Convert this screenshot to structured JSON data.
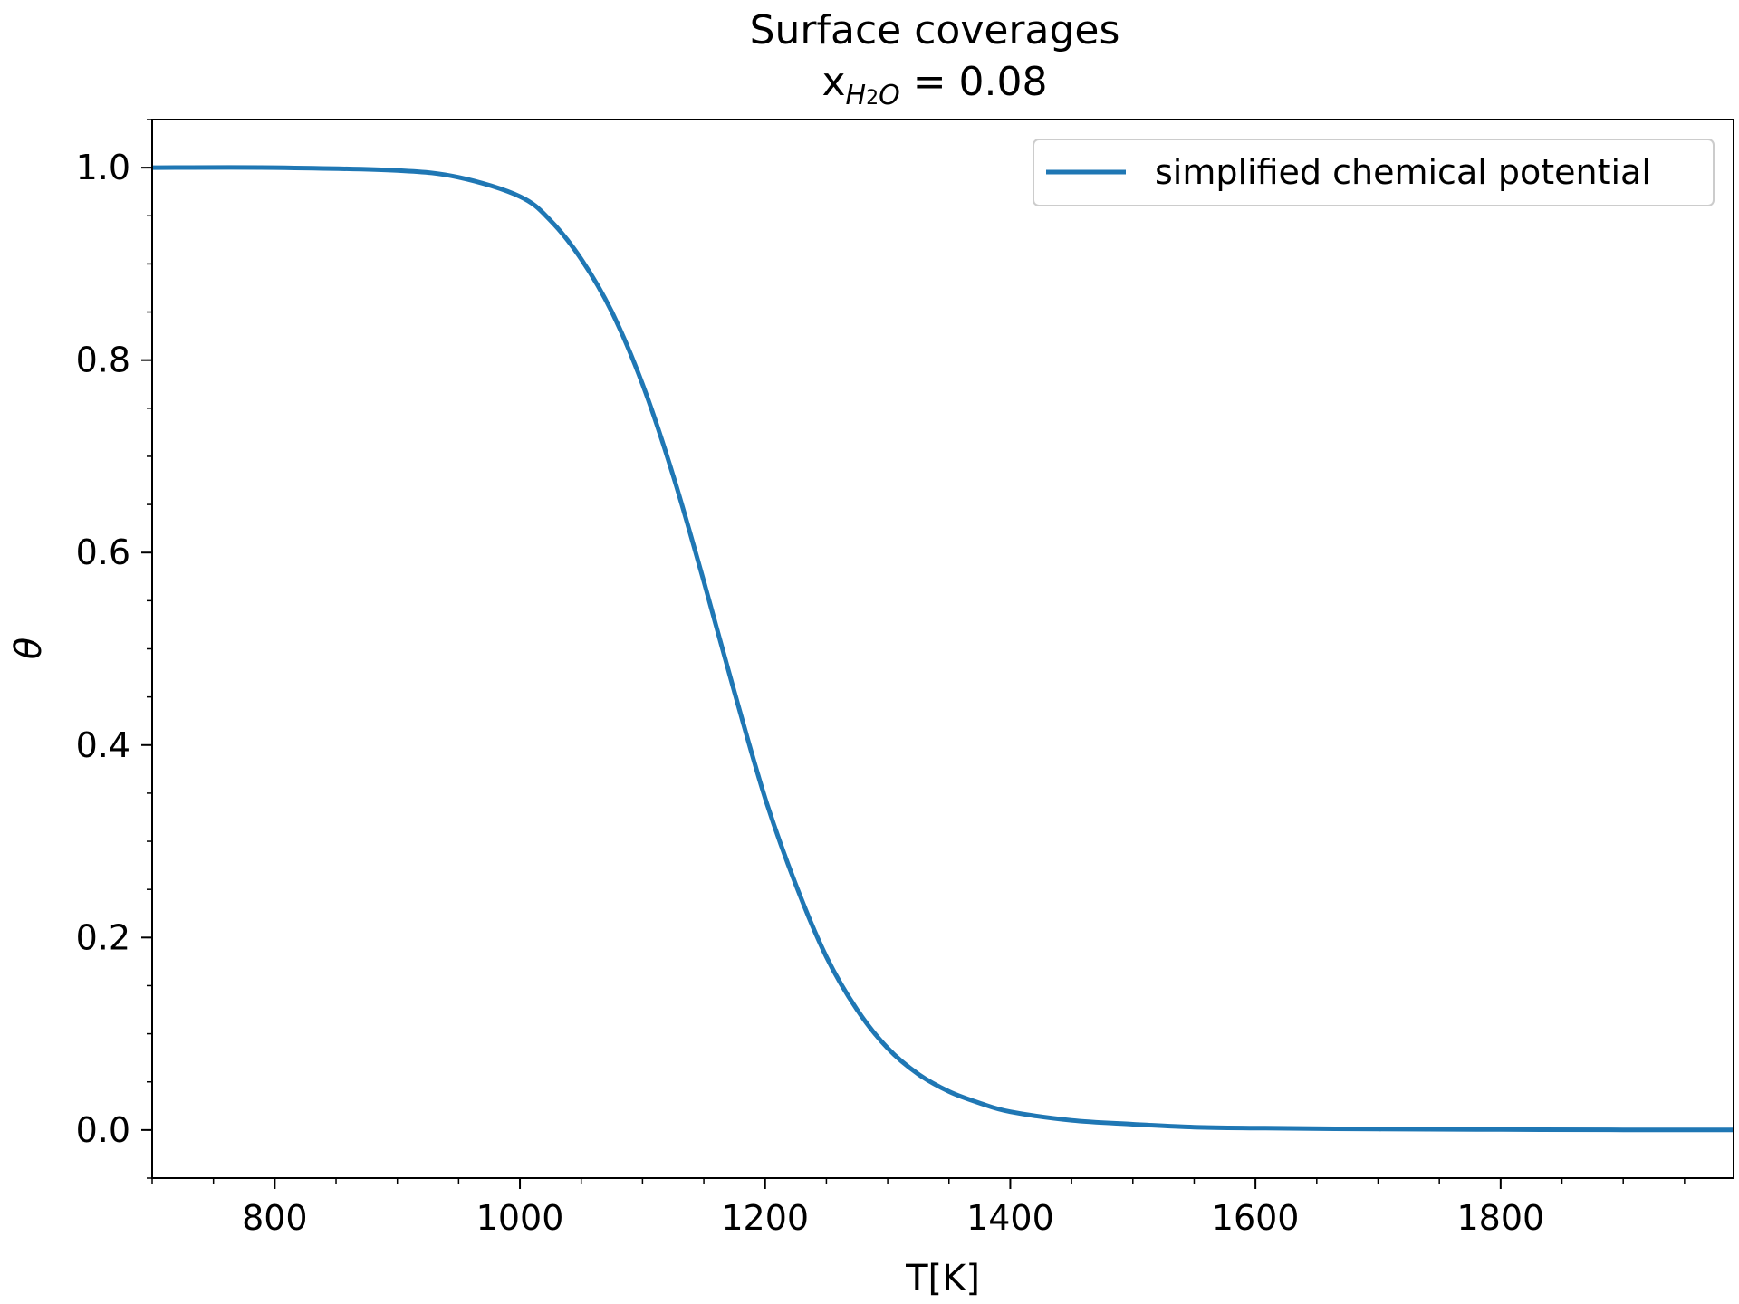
{
  "chart_data": {
    "type": "line",
    "title": "Surface coverages",
    "subtitle": {
      "prefix": "x",
      "subscript_main": "H",
      "subscript_sub": "2",
      "subscript_end": "O",
      "suffix": " = 0.08"
    },
    "xlabel": "T[K]",
    "ylabel": "θ",
    "xlim": [
      700,
      1990
    ],
    "ylim": [
      -0.05,
      1.05
    ],
    "xticks": [
      800,
      1000,
      1200,
      1400,
      1600,
      1800
    ],
    "xtick_labels": [
      "800",
      "1000",
      "1200",
      "1400",
      "1600",
      "1800"
    ],
    "yticks": [
      0.0,
      0.2,
      0.4,
      0.6,
      0.8,
      1.0
    ],
    "ytick_labels": [
      "0.0",
      "0.2",
      "0.4",
      "0.6",
      "0.8",
      "1.0"
    ],
    "x_minor_step": 50,
    "y_minor_step": 0.05,
    "grid": false,
    "legend_position": "top-right",
    "series": [
      {
        "name": "simplified chemical potential",
        "color": "#1f77b4",
        "x": [
          700,
          800,
          900,
          950,
          1000,
          1025,
          1050,
          1075,
          1100,
          1125,
          1150,
          1175,
          1200,
          1225,
          1250,
          1275,
          1300,
          1325,
          1350,
          1375,
          1400,
          1450,
          1500,
          1550,
          1600,
          1700,
          1800,
          1900,
          1990
        ],
        "y": [
          1.0,
          1.0,
          0.997,
          0.99,
          0.97,
          0.945,
          0.905,
          0.85,
          0.775,
          0.68,
          0.57,
          0.455,
          0.345,
          0.255,
          0.18,
          0.125,
          0.085,
          0.058,
          0.04,
          0.028,
          0.019,
          0.01,
          0.006,
          0.003,
          0.002,
          0.001,
          0.0005,
          0.0002,
          0.0001
        ]
      }
    ]
  }
}
